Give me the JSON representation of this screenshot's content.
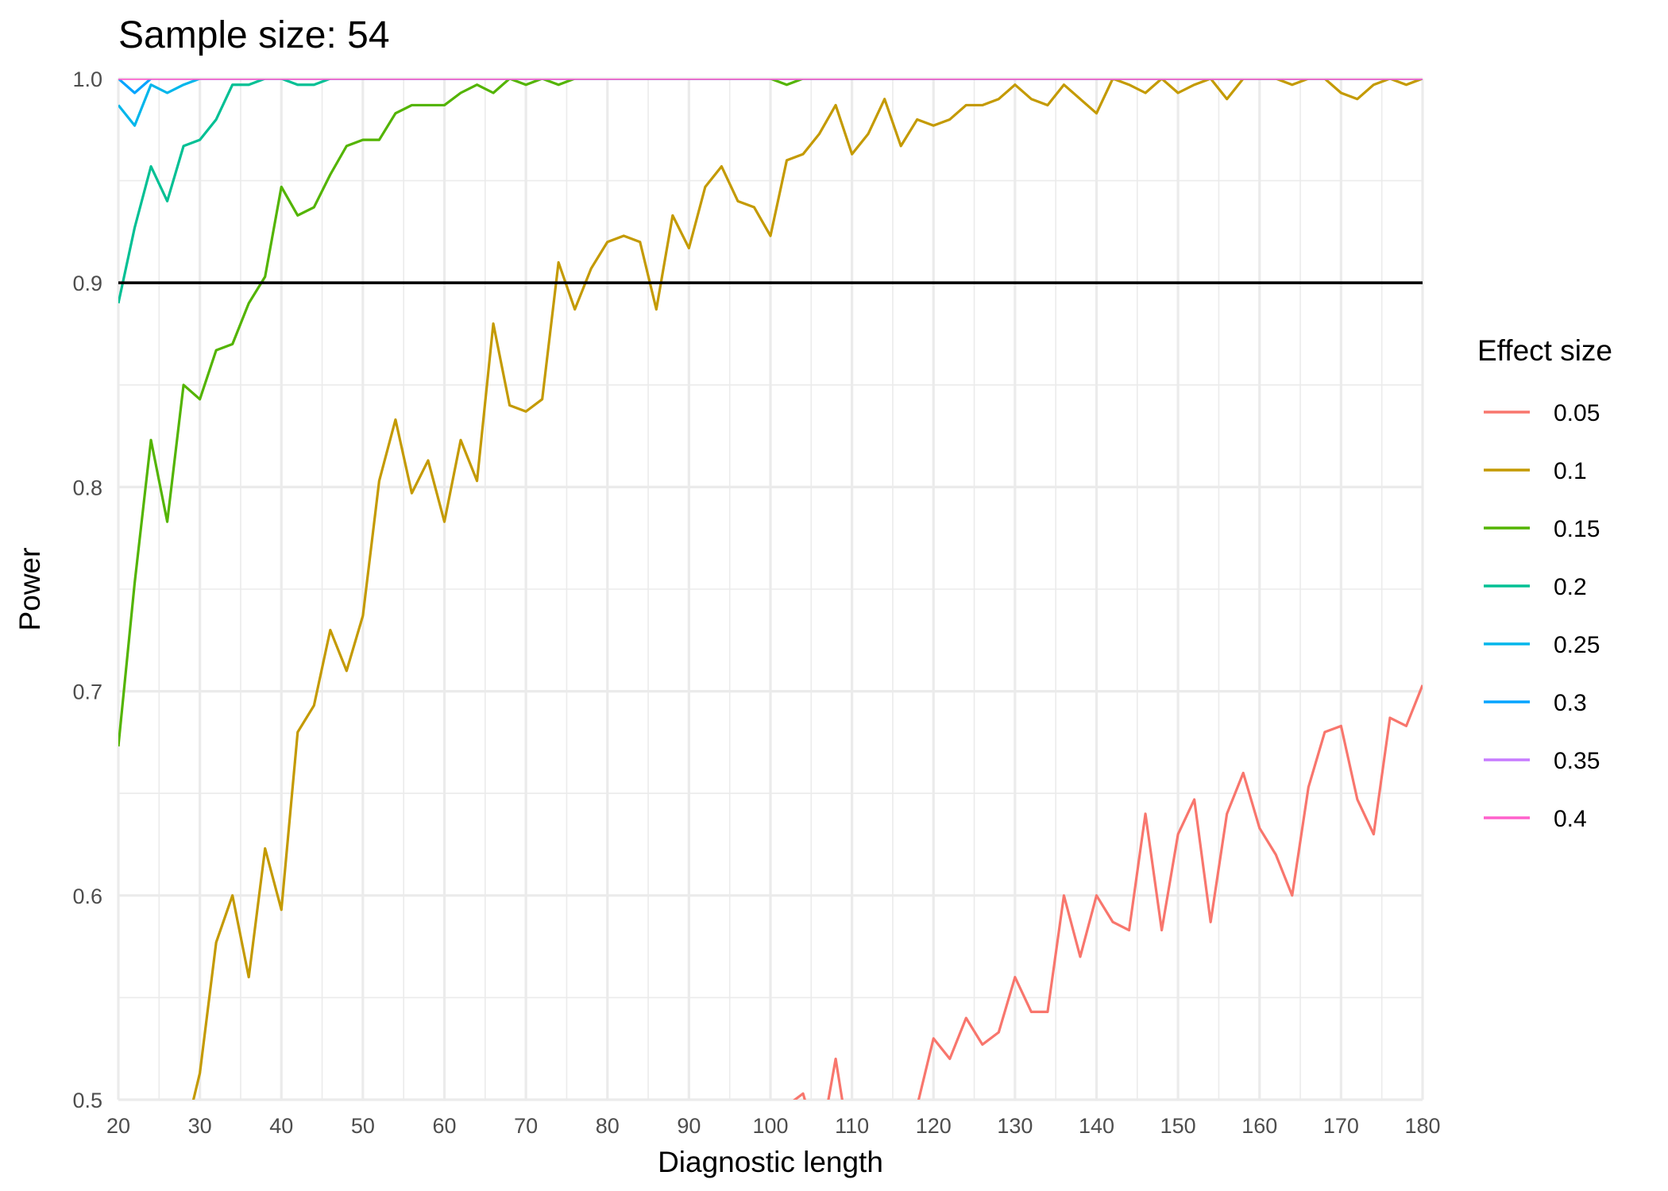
{
  "chart_data": {
    "type": "line",
    "title": "Sample size: 54",
    "xlabel": "Diagnostic length",
    "ylabel": "Power",
    "xlim": [
      20,
      180
    ],
    "ylim": [
      0.5,
      1.0
    ],
    "x_ticks": [
      20,
      30,
      40,
      50,
      60,
      70,
      80,
      90,
      100,
      110,
      120,
      130,
      140,
      150,
      160,
      170,
      180
    ],
    "x_tick_labels": [
      "20",
      "30",
      "40",
      "50",
      "60",
      "70",
      "80",
      "90",
      "100",
      "110",
      "120",
      "130",
      "140",
      "150",
      "160",
      "170",
      "180"
    ],
    "y_ticks": [
      0.5,
      0.6,
      0.7,
      0.8,
      0.9,
      1.0
    ],
    "y_tick_labels": [
      "0.5",
      "0.6",
      "0.7",
      "0.8",
      "0.9",
      "1.0"
    ],
    "grid": true,
    "reference_line": {
      "y": 0.9,
      "color": "#000000"
    },
    "legend": {
      "title": "Effect size",
      "position": "right"
    },
    "x": [
      20,
      22,
      24,
      26,
      28,
      30,
      32,
      34,
      36,
      38,
      40,
      42,
      44,
      46,
      48,
      50,
      52,
      54,
      56,
      58,
      60,
      62,
      64,
      66,
      68,
      70,
      72,
      74,
      76,
      78,
      80,
      82,
      84,
      86,
      88,
      90,
      92,
      94,
      96,
      98,
      100,
      102,
      104,
      106,
      108,
      110,
      112,
      114,
      116,
      118,
      120,
      122,
      124,
      126,
      128,
      130,
      132,
      134,
      136,
      138,
      140,
      142,
      144,
      146,
      148,
      150,
      152,
      154,
      156,
      158,
      160,
      162,
      164,
      166,
      168,
      170,
      172,
      174,
      176,
      178,
      180
    ],
    "series": [
      {
        "name": "0.05",
        "color": "#F8766D",
        "values": [
          null,
          null,
          null,
          null,
          null,
          null,
          null,
          null,
          null,
          null,
          null,
          null,
          null,
          null,
          null,
          null,
          null,
          null,
          null,
          null,
          null,
          null,
          null,
          null,
          null,
          null,
          null,
          null,
          null,
          null,
          null,
          null,
          null,
          null,
          null,
          null,
          null,
          null,
          null,
          null,
          null,
          0.497,
          0.503,
          0.475,
          0.52,
          0.47,
          0.455,
          0.465,
          0.475,
          0.497,
          0.53,
          0.52,
          0.54,
          0.527,
          0.533,
          0.56,
          0.543,
          0.543,
          0.6,
          0.57,
          0.6,
          0.587,
          0.583,
          0.64,
          0.583,
          0.63,
          0.647,
          0.587,
          0.64,
          0.66,
          0.633,
          0.62,
          0.6,
          0.653,
          0.68,
          0.683,
          0.647,
          0.63,
          0.687,
          0.683,
          0.703
        ]
      },
      {
        "name": "0.1",
        "color": "#C49A00",
        "values": [
          null,
          null,
          null,
          null,
          0.48,
          0.513,
          0.577,
          0.6,
          0.56,
          0.623,
          0.593,
          0.68,
          0.693,
          0.73,
          0.71,
          0.737,
          0.803,
          0.833,
          0.797,
          0.813,
          0.783,
          0.823,
          0.803,
          0.88,
          0.84,
          0.837,
          0.843,
          0.91,
          0.887,
          0.907,
          0.92,
          0.923,
          0.92,
          0.887,
          0.933,
          0.917,
          0.947,
          0.957,
          0.94,
          0.937,
          0.923,
          0.96,
          0.963,
          0.973,
          0.987,
          0.963,
          0.973,
          0.99,
          0.967,
          0.98,
          0.977,
          0.98,
          0.987,
          0.987,
          0.99,
          0.997,
          0.99,
          0.987,
          0.997,
          0.99,
          0.983,
          1.0,
          0.997,
          0.993,
          1.0,
          0.993,
          0.997,
          1.0,
          0.99,
          1.0,
          1.0,
          1.0,
          0.997,
          1.0,
          1.0,
          0.993,
          0.99,
          0.997,
          1.0,
          0.997,
          1.0
        ]
      },
      {
        "name": "0.15",
        "color": "#53B400",
        "values": [
          0.673,
          0.753,
          0.823,
          0.783,
          0.85,
          0.843,
          0.867,
          0.87,
          0.89,
          0.903,
          0.947,
          0.933,
          0.937,
          0.953,
          0.967,
          0.97,
          0.97,
          0.983,
          0.987,
          0.987,
          0.987,
          0.993,
          0.997,
          0.993,
          1.0,
          0.997,
          1.0,
          0.997,
          1.0,
          1.0,
          1.0,
          1.0,
          1.0,
          1.0,
          1.0,
          1.0,
          1.0,
          1.0,
          1.0,
          1.0,
          1.0,
          0.997,
          1.0,
          1.0,
          1.0,
          1.0,
          1.0,
          1.0,
          1.0,
          1.0,
          1.0,
          1.0,
          1.0,
          1.0,
          1.0,
          1.0,
          1.0,
          1.0,
          1.0,
          1.0,
          1.0,
          1.0,
          1.0,
          1.0,
          1.0,
          1.0,
          1.0,
          1.0,
          1.0,
          1.0,
          1.0,
          1.0,
          1.0,
          1.0,
          1.0,
          1.0,
          1.0,
          1.0,
          1.0,
          1.0,
          1.0
        ]
      },
      {
        "name": "0.2",
        "color": "#00C094",
        "values": [
          0.89,
          0.927,
          0.957,
          0.94,
          0.967,
          0.97,
          0.98,
          0.997,
          0.997,
          1.0,
          1.0,
          0.997,
          0.997,
          1.0,
          1.0,
          1.0,
          1.0,
          1.0,
          1.0,
          1.0,
          1.0,
          1.0,
          1.0,
          1.0,
          1.0,
          1.0,
          1.0,
          1.0,
          1.0,
          1.0,
          1.0,
          1.0,
          1.0,
          1.0,
          1.0,
          1.0,
          1.0,
          1.0,
          1.0,
          1.0,
          1.0,
          1.0,
          1.0,
          1.0,
          1.0,
          1.0,
          1.0,
          1.0,
          1.0,
          1.0,
          1.0,
          1.0,
          1.0,
          1.0,
          1.0,
          1.0,
          1.0,
          1.0,
          1.0,
          1.0,
          1.0,
          1.0,
          1.0,
          1.0,
          1.0,
          1.0,
          1.0,
          1.0,
          1.0,
          1.0,
          1.0,
          1.0,
          1.0,
          1.0,
          1.0,
          1.0,
          1.0,
          1.0,
          1.0,
          1.0,
          1.0
        ]
      },
      {
        "name": "0.25",
        "color": "#00B6EB",
        "values": [
          0.987,
          0.977,
          0.997,
          0.993,
          0.997,
          1.0,
          1.0,
          1.0,
          1.0,
          1.0,
          1.0,
          1.0,
          1.0,
          1.0,
          1.0,
          1.0,
          1.0,
          1.0,
          1.0,
          1.0,
          1.0,
          1.0,
          1.0,
          1.0,
          1.0,
          1.0,
          1.0,
          1.0,
          1.0,
          1.0,
          1.0,
          1.0,
          1.0,
          1.0,
          1.0,
          1.0,
          1.0,
          1.0,
          1.0,
          1.0,
          1.0,
          1.0,
          1.0,
          1.0,
          1.0,
          1.0,
          1.0,
          1.0,
          1.0,
          1.0,
          1.0,
          1.0,
          1.0,
          1.0,
          1.0,
          1.0,
          1.0,
          1.0,
          1.0,
          1.0,
          1.0,
          1.0,
          1.0,
          1.0,
          1.0,
          1.0,
          1.0,
          1.0,
          1.0,
          1.0,
          1.0,
          1.0,
          1.0,
          1.0,
          1.0,
          1.0,
          1.0,
          1.0,
          1.0,
          1.0,
          1.0
        ]
      },
      {
        "name": "0.3",
        "color": "#06A4FF",
        "values": [
          1.0,
          0.993,
          1.0,
          1.0,
          1.0,
          1.0,
          1.0,
          1.0,
          1.0,
          1.0,
          1.0,
          1.0,
          1.0,
          1.0,
          1.0,
          1.0,
          1.0,
          1.0,
          1.0,
          1.0,
          1.0,
          1.0,
          1.0,
          1.0,
          1.0,
          1.0,
          1.0,
          1.0,
          1.0,
          1.0,
          1.0,
          1.0,
          1.0,
          1.0,
          1.0,
          1.0,
          1.0,
          1.0,
          1.0,
          1.0,
          1.0,
          1.0,
          1.0,
          1.0,
          1.0,
          1.0,
          1.0,
          1.0,
          1.0,
          1.0,
          1.0,
          1.0,
          1.0,
          1.0,
          1.0,
          1.0,
          1.0,
          1.0,
          1.0,
          1.0,
          1.0,
          1.0,
          1.0,
          1.0,
          1.0,
          1.0,
          1.0,
          1.0,
          1.0,
          1.0,
          1.0,
          1.0,
          1.0,
          1.0,
          1.0,
          1.0,
          1.0,
          1.0,
          1.0,
          1.0,
          1.0
        ]
      },
      {
        "name": "0.35",
        "color": "#C77CFF",
        "values": [
          1.0,
          1.0,
          1.0,
          1.0,
          1.0,
          1.0,
          1.0,
          1.0,
          1.0,
          1.0,
          1.0,
          1.0,
          1.0,
          1.0,
          1.0,
          1.0,
          1.0,
          1.0,
          1.0,
          1.0,
          1.0,
          1.0,
          1.0,
          1.0,
          1.0,
          1.0,
          1.0,
          1.0,
          1.0,
          1.0,
          1.0,
          1.0,
          1.0,
          1.0,
          1.0,
          1.0,
          1.0,
          1.0,
          1.0,
          1.0,
          1.0,
          1.0,
          1.0,
          1.0,
          1.0,
          1.0,
          1.0,
          1.0,
          1.0,
          1.0,
          1.0,
          1.0,
          1.0,
          1.0,
          1.0,
          1.0,
          1.0,
          1.0,
          1.0,
          1.0,
          1.0,
          1.0,
          1.0,
          1.0,
          1.0,
          1.0,
          1.0,
          1.0,
          1.0,
          1.0,
          1.0,
          1.0,
          1.0,
          1.0,
          1.0,
          1.0,
          1.0,
          1.0,
          1.0,
          1.0,
          1.0
        ]
      },
      {
        "name": "0.4",
        "color": "#FF61CC",
        "values": [
          1.0,
          1.0,
          1.0,
          1.0,
          1.0,
          1.0,
          1.0,
          1.0,
          1.0,
          1.0,
          1.0,
          1.0,
          1.0,
          1.0,
          1.0,
          1.0,
          1.0,
          1.0,
          1.0,
          1.0,
          1.0,
          1.0,
          1.0,
          1.0,
          1.0,
          1.0,
          1.0,
          1.0,
          1.0,
          1.0,
          1.0,
          1.0,
          1.0,
          1.0,
          1.0,
          1.0,
          1.0,
          1.0,
          1.0,
          1.0,
          1.0,
          1.0,
          1.0,
          1.0,
          1.0,
          1.0,
          1.0,
          1.0,
          1.0,
          1.0,
          1.0,
          1.0,
          1.0,
          1.0,
          1.0,
          1.0,
          1.0,
          1.0,
          1.0,
          1.0,
          1.0,
          1.0,
          1.0,
          1.0,
          1.0,
          1.0,
          1.0,
          1.0,
          1.0,
          1.0,
          1.0,
          1.0,
          1.0,
          1.0,
          1.0,
          1.0,
          1.0,
          1.0,
          1.0,
          1.0,
          1.0
        ]
      }
    ]
  }
}
